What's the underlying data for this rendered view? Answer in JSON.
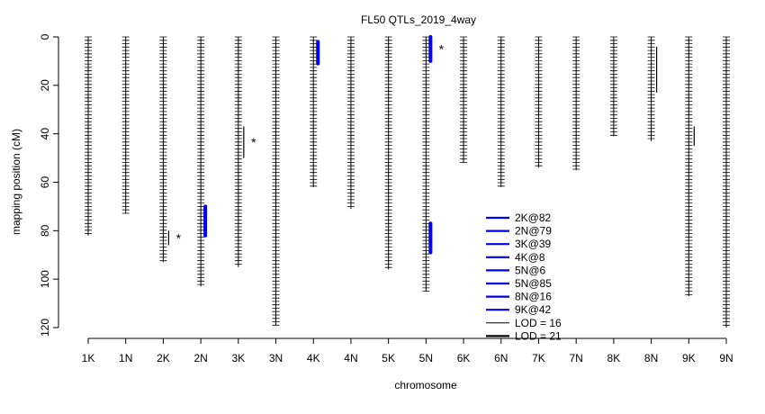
{
  "chart_data": {
    "type": "line",
    "title": "FL50 QTLs_2019_4way",
    "xlabel": "chromosome",
    "ylabel": "mapping position (cM)",
    "ylim": [
      0,
      120
    ],
    "y_reversed": true,
    "y_ticks": [
      0,
      20,
      40,
      60,
      80,
      100,
      120
    ],
    "grid": false,
    "legend_position": "bottom-center",
    "chromosomes": [
      {
        "name": "1K",
        "length": 82
      },
      {
        "name": "1N",
        "length": 73
      },
      {
        "name": "2K",
        "length": 93
      },
      {
        "name": "2N",
        "length": 103
      },
      {
        "name": "3K",
        "length": 95
      },
      {
        "name": "3N",
        "length": 119
      },
      {
        "name": "4K",
        "length": 62
      },
      {
        "name": "4N",
        "length": 71
      },
      {
        "name": "5K",
        "length": 96
      },
      {
        "name": "5N",
        "length": 105
      },
      {
        "name": "6K",
        "length": 52
      },
      {
        "name": "6N",
        "length": 62
      },
      {
        "name": "7K",
        "length": 54
      },
      {
        "name": "7N",
        "length": 55
      },
      {
        "name": "8K",
        "length": 41
      },
      {
        "name": "8N",
        "length": 43
      },
      {
        "name": "9K",
        "length": 107
      },
      {
        "name": "9N",
        "length": 120
      }
    ],
    "qtls": [
      {
        "name": "2K@82",
        "chromosome": "2K",
        "start": 80,
        "end": 86,
        "lod": 16,
        "color": "#000000",
        "star": true
      },
      {
        "name": "2N@79",
        "chromosome": "2N",
        "start": 70,
        "end": 82,
        "lod": 21,
        "color": "#0000ee",
        "star": false
      },
      {
        "name": "3K@39",
        "chromosome": "3K",
        "start": 37,
        "end": 50,
        "lod": 16,
        "color": "#000000",
        "star": true
      },
      {
        "name": "4K@8",
        "chromosome": "4K",
        "start": 2,
        "end": 11,
        "lod": 21,
        "color": "#0000ee",
        "star": false
      },
      {
        "name": "5N@6",
        "chromosome": "5N",
        "start": 0,
        "end": 10,
        "lod": 21,
        "color": "#0000ee",
        "star": true
      },
      {
        "name": "5N@85",
        "chromosome": "5N",
        "start": 77,
        "end": 89,
        "lod": 21,
        "color": "#0000ee",
        "star": false
      },
      {
        "name": "8N@16",
        "chromosome": "8N",
        "start": 4,
        "end": 23,
        "lod": 16,
        "color": "#000000",
        "star": false
      },
      {
        "name": "9K@42",
        "chromosome": "9K",
        "start": 37,
        "end": 45,
        "lod": 16,
        "color": "#000000",
        "star": false
      }
    ],
    "legend": [
      {
        "label": "2K@82",
        "color": "#0000ee",
        "width": "thick"
      },
      {
        "label": "2N@79",
        "color": "#0000ee",
        "width": "thick"
      },
      {
        "label": "3K@39",
        "color": "#0000ee",
        "width": "thick"
      },
      {
        "label": "4K@8",
        "color": "#0000ee",
        "width": "thick"
      },
      {
        "label": "5N@6",
        "color": "#0000ee",
        "width": "thick"
      },
      {
        "label": "5N@85",
        "color": "#0000ee",
        "width": "thick"
      },
      {
        "label": "8N@16",
        "color": "#0000ee",
        "width": "thick"
      },
      {
        "label": "9K@42",
        "color": "#0000ee",
        "width": "thick"
      },
      {
        "label": "LOD = 16",
        "color": "#000000",
        "width": "thin"
      },
      {
        "label": "LOD = 21",
        "color": "#000000",
        "width": "thick"
      }
    ],
    "star_symbol": "*",
    "star_color": "#ff0000"
  }
}
